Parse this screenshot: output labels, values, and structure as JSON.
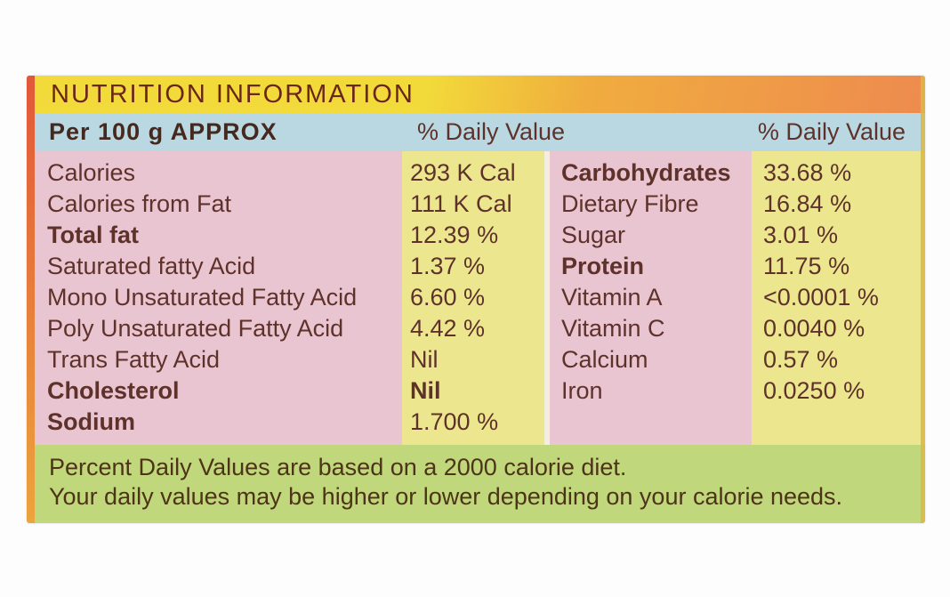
{
  "header": {
    "title": "NUTRITION INFORMATION"
  },
  "columns_header": {
    "serving": "Per 100 g APPROX",
    "daily_value_left": "% Daily Value",
    "daily_value_right": "% Daily Value"
  },
  "left_rows": [
    {
      "label": "Calories",
      "value": "293 K Cal"
    },
    {
      "label": "Calories from Fat",
      "value": "111 K Cal"
    },
    {
      "label": "Total fat",
      "value": "12.39 %"
    },
    {
      "label": "Saturated fatty Acid",
      "value": "1.37 %"
    },
    {
      "label": "Mono Unsaturated Fatty Acid",
      "value": "6.60 %"
    },
    {
      "label": "Poly Unsaturated Fatty Acid",
      "value": "4.42 %"
    },
    {
      "label": "Trans Fatty Acid",
      "value": "Nil"
    },
    {
      "label": "Cholesterol",
      "value": "Nil"
    },
    {
      "label": "Sodium",
      "value": "1.700 %"
    }
  ],
  "right_rows": [
    {
      "label": "Carbohydrates",
      "value": "33.68 %"
    },
    {
      "label": "Dietary Fibre",
      "value": "16.84 %"
    },
    {
      "label": "Sugar",
      "value": "3.01 %"
    },
    {
      "label": "Protein",
      "value": "11.75 %"
    },
    {
      "label": "Vitamin A",
      "value": "<0.0001 %"
    },
    {
      "label": "Vitamin C",
      "value": "0.0040 %"
    },
    {
      "label": "Calcium",
      "value": "0.57 %"
    },
    {
      "label": "Iron",
      "value": "0.0250 %"
    }
  ],
  "footer": {
    "line1": "Percent Daily Values are based on a 2000 calorie diet.",
    "line2": "Your daily values may be higher or lower depending on your calorie needs."
  },
  "colors": {
    "backdrop": "#fdfdfd",
    "band_yellow": "#f2da3a",
    "band_mid": "#f0ac3e",
    "band_orange": "#ee8b4f",
    "edge_strip_top": "#e2573a",
    "edge_strip_bottom": "#eca43c",
    "right_edge": "#d9b944",
    "blue_bar": "#b9d8e2",
    "pink": "#e8c5d1",
    "value_yellow": "#ece78e",
    "gap": "#f3eee0",
    "footer_green": "#c1d77b",
    "title_text": "#6b261c",
    "body_text": "#5e322a",
    "dark_text": "#45291f",
    "footer_text": "#4d3418"
  }
}
